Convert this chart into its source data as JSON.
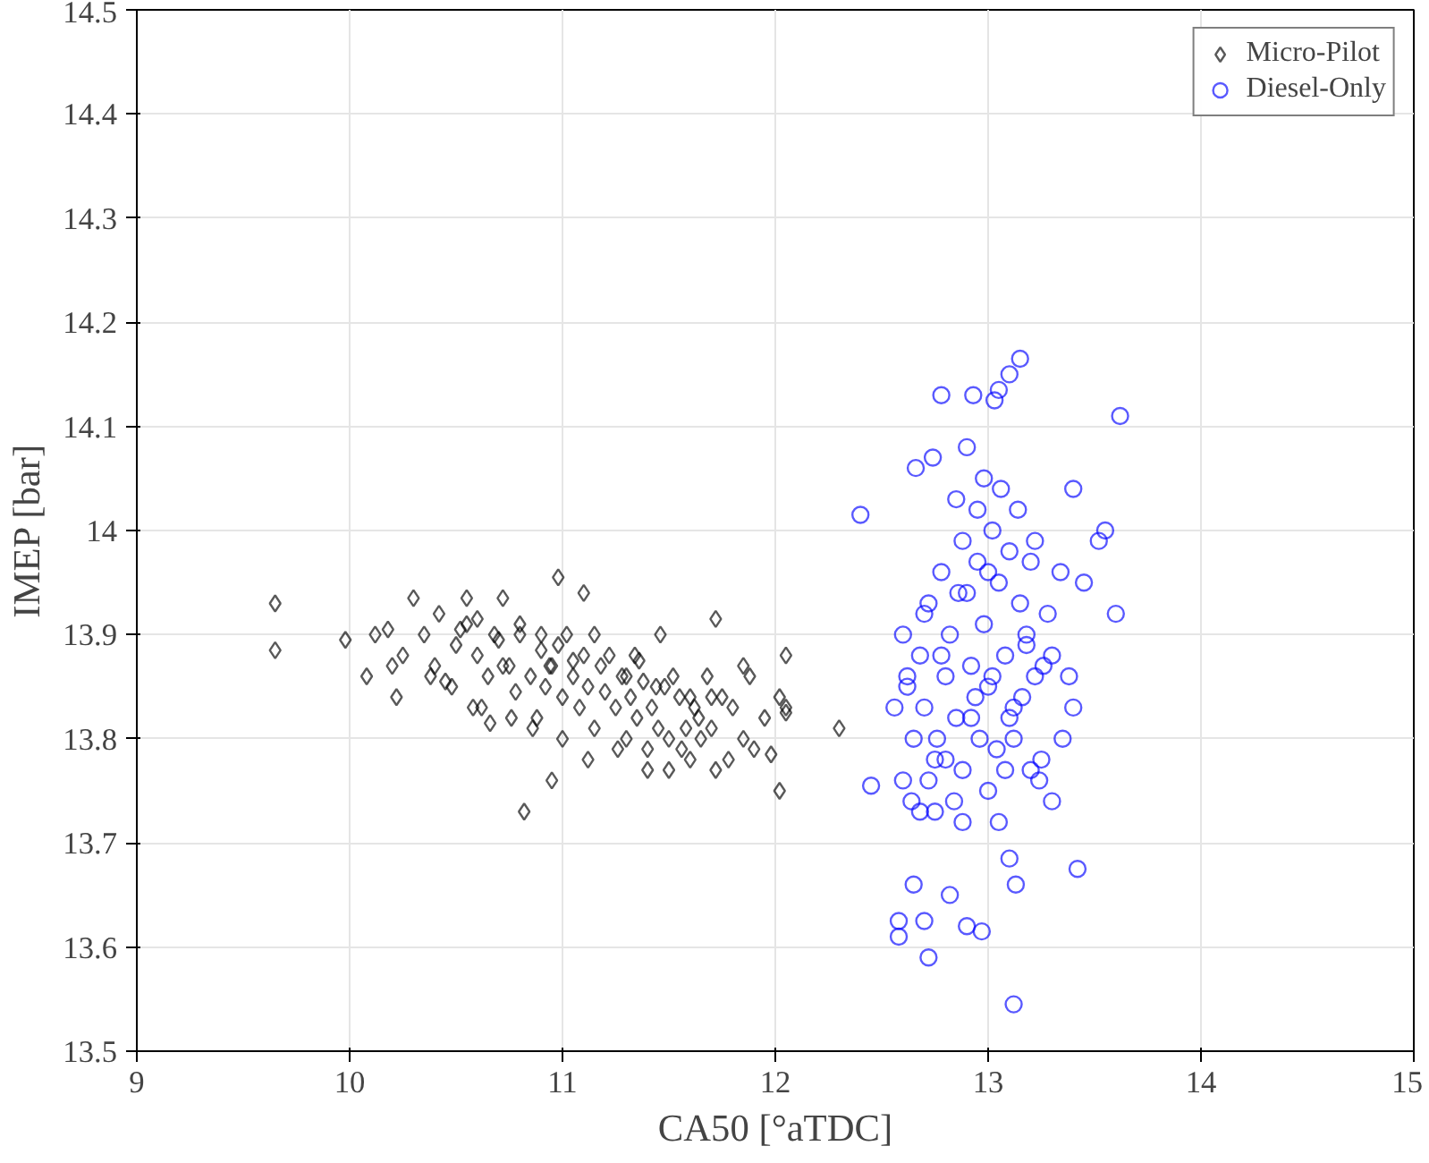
{
  "chart_data": {
    "type": "scatter",
    "xlabel": "CA50 [°aTDC]",
    "ylabel": "IMEP [bar]",
    "xlim": [
      9,
      15
    ],
    "ylim": [
      13.5,
      14.5
    ],
    "xticks": [
      9,
      10,
      11,
      12,
      13,
      14,
      15
    ],
    "yticks": [
      13.5,
      13.6,
      13.7,
      13.8,
      13.9,
      14,
      14.1,
      14.2,
      14.3,
      14.4,
      14.5
    ],
    "grid": true,
    "legend": "top right",
    "series": [
      {
        "name": "Micro-Pilot",
        "color": "#000000",
        "marker": "diamond",
        "x": [
          9.65,
          9.65,
          9.98,
          10.12,
          10.08,
          10.2,
          10.3,
          10.22,
          10.55,
          10.72,
          10.98,
          11.1,
          10.82,
          11.72,
          12.05,
          12.3,
          12.02,
          11.98,
          10.95,
          11.5,
          11.72,
          12.05,
          11.85,
          11.9,
          10.18,
          10.25,
          10.35,
          10.4,
          10.45,
          10.5,
          10.55,
          10.6,
          10.62,
          10.65,
          10.7,
          10.75,
          10.78,
          10.8,
          10.85,
          10.88,
          10.9,
          10.92,
          10.95,
          11.0,
          11.02,
          11.05,
          11.08,
          11.1,
          11.12,
          11.15,
          11.18,
          11.2,
          11.25,
          11.28,
          11.3,
          11.32,
          11.35,
          11.38,
          11.4,
          11.42,
          11.45,
          11.48,
          11.5,
          11.55,
          11.58,
          11.6,
          11.62,
          11.65,
          11.68,
          11.7,
          11.75,
          11.78,
          11.8,
          11.85,
          11.88,
          11.95,
          12.02,
          12.05,
          10.42,
          10.52,
          10.6,
          10.68,
          10.72,
          10.8,
          10.9,
          10.98,
          11.05,
          11.15,
          11.22,
          11.3,
          11.36,
          11.44,
          11.52,
          11.6,
          11.7,
          10.48,
          10.58,
          10.66,
          10.86,
          11.0,
          11.12,
          11.26,
          11.4,
          11.56,
          10.38,
          10.76,
          10.94,
          11.34,
          11.46,
          11.64
        ],
        "values": [
          13.93,
          13.885,
          13.895,
          13.9,
          13.86,
          13.87,
          13.935,
          13.84,
          13.935,
          13.935,
          13.955,
          13.94,
          13.73,
          13.915,
          13.88,
          13.81,
          13.75,
          13.785,
          13.76,
          13.77,
          13.77,
          13.83,
          13.87,
          13.79,
          13.905,
          13.88,
          13.9,
          13.87,
          13.855,
          13.89,
          13.91,
          13.88,
          13.83,
          13.86,
          13.895,
          13.87,
          13.845,
          13.9,
          13.86,
          13.82,
          13.885,
          13.85,
          13.87,
          13.84,
          13.9,
          13.86,
          13.83,
          13.88,
          13.85,
          13.81,
          13.87,
          13.845,
          13.83,
          13.86,
          13.8,
          13.84,
          13.82,
          13.855,
          13.79,
          13.83,
          13.81,
          13.85,
          13.8,
          13.84,
          13.81,
          13.78,
          13.83,
          13.8,
          13.86,
          13.81,
          13.84,
          13.78,
          13.83,
          13.8,
          13.86,
          13.82,
          13.84,
          13.825,
          13.92,
          13.905,
          13.915,
          13.9,
          13.87,
          13.91,
          13.9,
          13.89,
          13.875,
          13.9,
          13.88,
          13.86,
          13.875,
          13.85,
          13.86,
          13.84,
          13.84,
          13.85,
          13.83,
          13.815,
          13.81,
          13.8,
          13.78,
          13.79,
          13.77,
          13.79,
          13.86,
          13.82,
          13.87,
          13.88,
          13.9,
          13.82
        ]
      },
      {
        "name": "Diesel-Only",
        "color": "#0000ff",
        "marker": "circle",
        "x": [
          12.4,
          13.15,
          13.1,
          13.05,
          12.78,
          12.93,
          13.03,
          13.62,
          13.4,
          13.55,
          13.52,
          13.6,
          13.45,
          13.38,
          13.4,
          12.45,
          12.58,
          12.58,
          12.7,
          12.9,
          12.97,
          12.72,
          13.12,
          13.42,
          13.1,
          13.13,
          13.05,
          12.82,
          12.65,
          12.88,
          12.6,
          12.62,
          12.65,
          12.68,
          12.7,
          12.72,
          12.75,
          12.78,
          12.8,
          12.82,
          12.85,
          12.88,
          12.9,
          12.92,
          12.95,
          12.98,
          13.0,
          13.02,
          13.05,
          13.08,
          13.1,
          13.12,
          13.15,
          13.18,
          13.2,
          13.22,
          13.25,
          13.28,
          13.3,
          13.35,
          12.6,
          12.64,
          12.68,
          12.72,
          12.76,
          12.8,
          12.84,
          12.88,
          12.92,
          12.96,
          13.0,
          13.04,
          13.08,
          13.12,
          13.16,
          13.2,
          13.24,
          13.3,
          12.62,
          12.7,
          12.78,
          12.86,
          12.94,
          13.02,
          13.1,
          13.18,
          13.26,
          12.66,
          12.74,
          12.9,
          12.98,
          13.06,
          13.14,
          12.56,
          12.95,
          13.0,
          12.85,
          13.22,
          13.34,
          12.75
        ],
        "values": [
          14.015,
          14.165,
          14.15,
          14.135,
          14.13,
          14.13,
          14.125,
          14.11,
          14.04,
          14.0,
          13.99,
          13.92,
          13.95,
          13.86,
          13.83,
          13.755,
          13.625,
          13.61,
          13.625,
          13.62,
          13.615,
          13.59,
          13.545,
          13.675,
          13.685,
          13.66,
          13.72,
          13.65,
          13.66,
          13.72,
          13.9,
          13.85,
          13.8,
          13.88,
          13.83,
          13.93,
          13.78,
          13.96,
          13.86,
          13.9,
          13.82,
          13.99,
          13.94,
          13.87,
          14.02,
          13.91,
          13.85,
          14.0,
          13.95,
          13.88,
          13.98,
          13.83,
          13.93,
          13.9,
          13.97,
          13.86,
          13.78,
          13.92,
          13.88,
          13.8,
          13.76,
          13.74,
          13.73,
          13.76,
          13.8,
          13.78,
          13.74,
          13.77,
          13.82,
          13.8,
          13.75,
          13.79,
          13.77,
          13.8,
          13.84,
          13.77,
          13.76,
          13.74,
          13.86,
          13.92,
          13.88,
          13.94,
          13.84,
          13.86,
          13.82,
          13.89,
          13.87,
          14.06,
          14.07,
          14.08,
          14.05,
          14.04,
          14.02,
          13.83,
          13.97,
          13.96,
          14.03,
          13.99,
          13.96,
          13.73
        ]
      }
    ]
  }
}
